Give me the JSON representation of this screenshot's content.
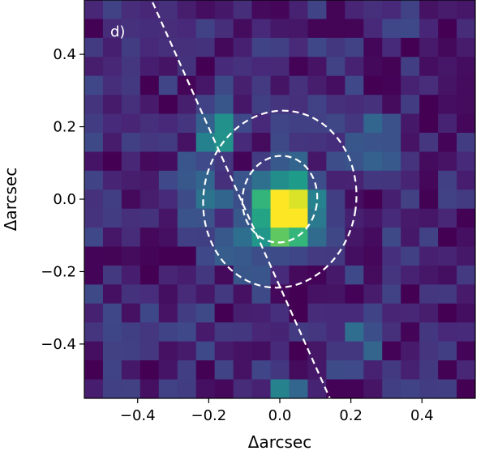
{
  "chart_data": {
    "type": "heatmap",
    "panel_label": "d)",
    "xlabel": "Δarcsec",
    "ylabel": "Δarcsec",
    "xlim": [
      -0.55,
      0.55
    ],
    "ylim": [
      -0.55,
      0.55
    ],
    "x_ticks": [
      {
        "value": -0.4,
        "label": "−0.4"
      },
      {
        "value": -0.2,
        "label": "−0.2"
      },
      {
        "value": 0.0,
        "label": "0.0"
      },
      {
        "value": 0.2,
        "label": "0.2"
      },
      {
        "value": 0.4,
        "label": "0.4"
      }
    ],
    "y_ticks": [
      {
        "value": 0.4,
        "label": "0.4"
      },
      {
        "value": 0.2,
        "label": "0.2"
      },
      {
        "value": 0.0,
        "label": "0.0"
      },
      {
        "value": -0.2,
        "label": "−0.2"
      },
      {
        "value": -0.4,
        "label": "−0.4"
      }
    ],
    "colormap": "viridis",
    "grid": {
      "rows": 21,
      "cols": 21,
      "cell_size": 0.05,
      "x_start": -0.55,
      "y_start": 0.55,
      "peak": {
        "x": 0.0,
        "y": 0.0,
        "amplitude": 1.0,
        "sigma": 0.06
      },
      "secondary_sources": [
        {
          "x": -0.17,
          "y": 0.22,
          "amplitude": 0.42,
          "sigma": 0.035
        },
        {
          "x": -0.21,
          "y": 0.19,
          "amplitude": 0.3,
          "sigma": 0.03
        },
        {
          "x": -0.1,
          "y": -0.08,
          "amplitude": 0.28,
          "sigma": 0.06
        },
        {
          "x": -0.02,
          "y": -0.48,
          "amplitude": 0.32,
          "sigma": 0.035
        },
        {
          "x": -0.23,
          "y": 0.05,
          "amplitude": 0.22,
          "sigma": 0.05
        },
        {
          "x": 0.23,
          "y": 0.18,
          "amplitude": 0.2,
          "sigma": 0.05
        },
        {
          "x": 0.19,
          "y": -0.34,
          "amplitude": 0.22,
          "sigma": 0.04
        },
        {
          "x": -0.4,
          "y": -0.33,
          "amplitude": 0.2,
          "sigma": 0.04
        }
      ],
      "background_level": 0.1,
      "noise_level": 0.12
    },
    "overlays": [
      {
        "type": "ellipse",
        "center": [
          0.0,
          0.0
        ],
        "rx": 0.105,
        "ry": 0.12,
        "angle_deg": 8,
        "style": "dashed",
        "color": "#ffffff"
      },
      {
        "type": "ellipse",
        "center": [
          0.0,
          0.0
        ],
        "rx": 0.215,
        "ry": 0.245,
        "angle_deg": 8,
        "style": "dashed",
        "color": "#ffffff"
      },
      {
        "type": "line",
        "from": [
          -0.37,
          0.57
        ],
        "to": [
          0.15,
          -0.57
        ],
        "style": "dashed",
        "color": "#ffffff"
      }
    ]
  }
}
